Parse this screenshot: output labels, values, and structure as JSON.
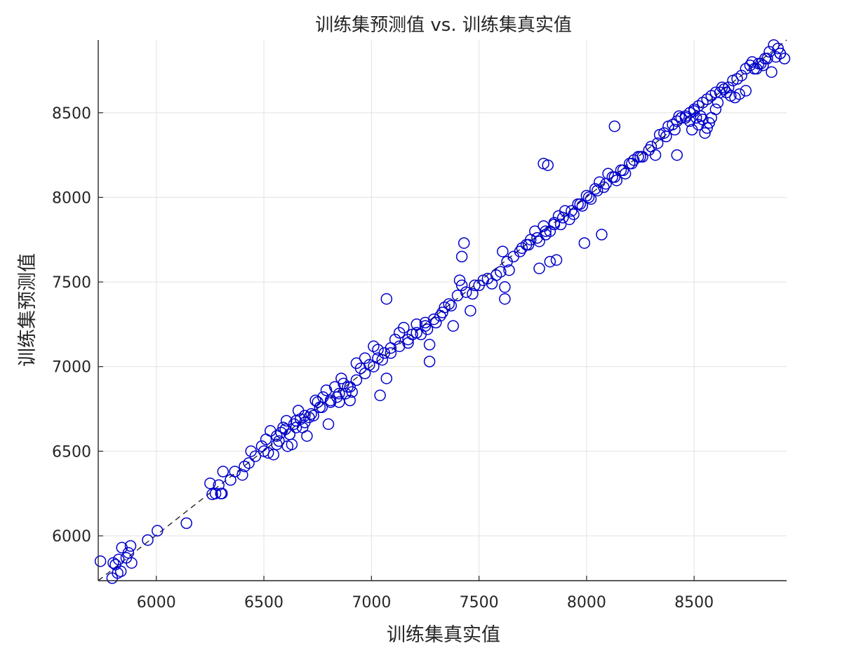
{
  "chart_data": {
    "type": "scatter",
    "title": "训练集预测值 vs. 训练集真实值",
    "xlabel": "训练集真实值",
    "ylabel": "训练集预测值",
    "xlim": [
      5730,
      8930
    ],
    "ylim": [
      5735,
      8930
    ],
    "xticks": [
      6000,
      6500,
      7000,
      7500,
      8000,
      8500
    ],
    "yticks": [
      6000,
      6500,
      7000,
      7500,
      8000,
      8500
    ],
    "grid": true,
    "legend": "none",
    "marker_color": "#0000cc",
    "reference_line": {
      "style": "dashed",
      "color": "#1a1a1a",
      "from": [
        5730,
        5735
      ],
      "to": [
        8930,
        8930
      ]
    },
    "series": [
      {
        "x": [
          5740,
          5795,
          5800,
          5810,
          5820,
          5825,
          5835,
          5840,
          5860,
          5870,
          5880,
          5885,
          5960,
          6005,
          6140,
          6250,
          6260,
          6275,
          6290,
          6300,
          6305,
          6310,
          6345,
          6365,
          6400,
          6410,
          6430,
          6440,
          6460,
          6490,
          6500,
          6510,
          6520,
          6530,
          6545,
          6560,
          6570,
          6580,
          6590,
          6600,
          6605,
          6610,
          6620,
          6630,
          6640,
          6650,
          6660,
          6670,
          6680,
          6690,
          6700,
          6710,
          6720,
          6740,
          6750,
          6760,
          6775,
          6790,
          6800,
          6810,
          6830,
          6840,
          6850,
          6860,
          6870,
          6880,
          6900,
          6910,
          6930,
          6950,
          6970,
          6990,
          7010,
          7030,
          7040,
          7060,
          7070,
          7090,
          7110,
          7130,
          7150,
          7170,
          7190,
          7210,
          7230,
          7250,
          7260,
          7270,
          7300,
          7320,
          7340,
          7360,
          7380,
          7400,
          7410,
          7420,
          7440,
          7460,
          7480,
          7500,
          7520,
          7540,
          7560,
          7580,
          7600,
          7610,
          7620,
          7630,
          7640,
          7660,
          7700,
          7720,
          7740,
          7760,
          7780,
          7800,
          7810,
          7830,
          7850,
          7870,
          7880,
          7900,
          7920,
          7940,
          7960,
          7980,
          8000,
          8020,
          8040,
          8060,
          8080,
          8100,
          8120,
          8140,
          8160,
          8180,
          8200,
          8220,
          8240,
          8260,
          8300,
          8320,
          8340,
          8360,
          8380,
          8400,
          8420,
          8440,
          8460,
          8480,
          8500,
          8520,
          8540,
          8560,
          8580,
          8600,
          8640,
          8660,
          8680,
          8700,
          8740,
          8770,
          8790,
          8810,
          8830,
          8850,
          8870,
          8890,
          8900,
          8920,
          6900,
          7030,
          7070,
          7270,
          7420,
          7430,
          7470,
          7620,
          7780,
          7800,
          7820,
          7830,
          7860,
          7990,
          8070,
          8130,
          8420,
          8430,
          8460,
          8480,
          8490,
          8500,
          8510,
          8520,
          8530,
          8540,
          8550,
          8560,
          8570,
          8580,
          8600,
          8610,
          8620,
          8630,
          8650,
          8670,
          8690,
          8710,
          8720,
          8740,
          8760,
          8780,
          8800,
          8820,
          8840,
          8860,
          8880,
          8900,
          6560,
          6620,
          6650,
          6690,
          6730,
          6770,
          6810,
          6850,
          6890,
          6930,
          6970,
          7010,
          7050,
          7090,
          7130,
          7170,
          7210,
          7250,
          7290,
          7330,
          7370,
          7690,
          7730,
          7770,
          7810,
          7850,
          7890,
          7930,
          7970,
          8010,
          8050,
          8090,
          8130,
          8170,
          8210,
          8250,
          8290,
          8330,
          8370,
          8410
        ],
        "y": [
          5850,
          5750,
          5840,
          5830,
          5780,
          5860,
          5790,
          5930,
          5870,
          5900,
          5940,
          5840,
          5975,
          6030,
          6075,
          6310,
          6245,
          6250,
          6300,
          6250,
          6250,
          6380,
          6330,
          6380,
          6360,
          6410,
          6430,
          6500,
          6470,
          6530,
          6500,
          6570,
          6490,
          6620,
          6480,
          6590,
          6560,
          6610,
          6640,
          6630,
          6680,
          6530,
          6600,
          6540,
          6660,
          6680,
          6740,
          6690,
          6640,
          6710,
          6590,
          6700,
          6720,
          6800,
          6790,
          6760,
          6820,
          6860,
          6660,
          6790,
          6880,
          6820,
          6790,
          6930,
          6900,
          6840,
          6800,
          6850,
          7020,
          6990,
          7050,
          7010,
          7120,
          7100,
          6830,
          7080,
          7400,
          7110,
          7160,
          7200,
          7230,
          7140,
          7190,
          7250,
          7190,
          7260,
          7220,
          7130,
          7260,
          7300,
          7350,
          7370,
          7240,
          7420,
          7510,
          7480,
          7440,
          7330,
          7480,
          7480,
          7510,
          7520,
          7490,
          7540,
          7560,
          7680,
          7470,
          7620,
          7570,
          7650,
          7700,
          7720,
          7750,
          7800,
          7740,
          7830,
          7780,
          7800,
          7850,
          7890,
          7840,
          7920,
          7870,
          7900,
          7960,
          7950,
          8010,
          7990,
          8050,
          8090,
          8060,
          8140,
          8120,
          8100,
          8160,
          8140,
          8200,
          8220,
          8240,
          8240,
          8300,
          8250,
          8370,
          8380,
          8420,
          8430,
          8450,
          8470,
          8480,
          8500,
          8520,
          8540,
          8560,
          8580,
          8600,
          8620,
          8640,
          8650,
          8690,
          8700,
          8760,
          8800,
          8760,
          8790,
          8820,
          8860,
          8900,
          8880,
          8850,
          8820,
          6880,
          7050,
          6930,
          7030,
          7650,
          7730,
          7430,
          7400,
          7580,
          8200,
          8190,
          7620,
          7630,
          7730,
          7780,
          8420,
          8250,
          8480,
          8470,
          8450,
          8400,
          8510,
          8470,
          8430,
          8480,
          8460,
          8380,
          8410,
          8440,
          8470,
          8520,
          8560,
          8620,
          8650,
          8620,
          8600,
          8590,
          8610,
          8720,
          8630,
          8780,
          8760,
          8790,
          8780,
          8820,
          8740,
          8830,
          8850,
          6540,
          6600,
          6640,
          6670,
          6710,
          6760,
          6800,
          6840,
          6880,
          6920,
          6960,
          7000,
          7040,
          7080,
          7120,
          7160,
          7200,
          7240,
          7280,
          7320,
          7360,
          7680,
          7720,
          7760,
          7800,
          7840,
          7880,
          7920,
          7960,
          8000,
          8040,
          8080,
          8120,
          8160,
          8200,
          8240,
          8280,
          8320,
          8360,
          8400
        ]
      }
    ]
  }
}
